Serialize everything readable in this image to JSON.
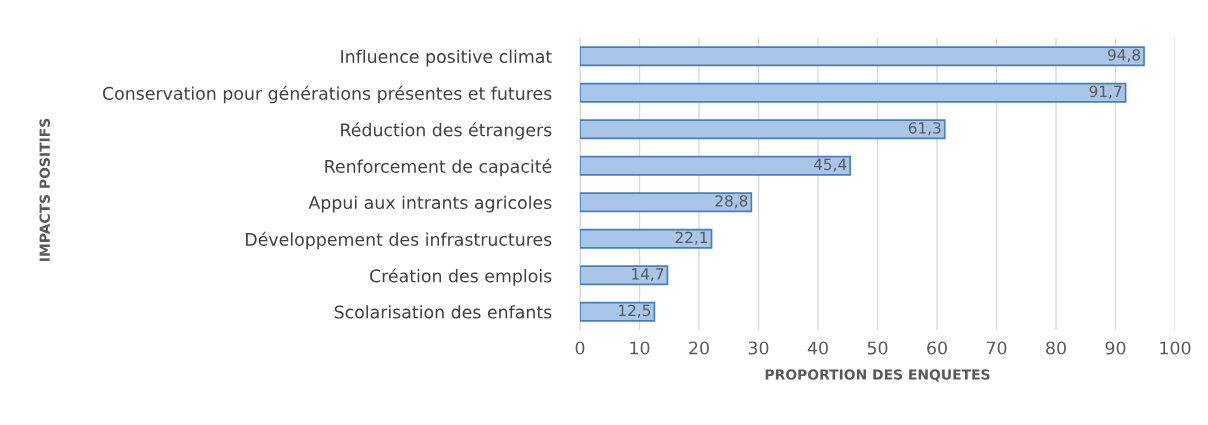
{
  "chart_data": {
    "type": "bar",
    "orientation": "horizontal",
    "xlabel": "PROPORTION DES ENQUETES",
    "ylabel": "IMPACTS POSITIFS",
    "categories": [
      "Influence positive climat",
      "Conservation pour générations présentes et futures",
      "Réduction des étrangers",
      "Renforcement de capacité",
      "Appui aux intrants agricoles",
      "Développement des infrastructures",
      "Création des emplois",
      "Scolarisation des enfants"
    ],
    "series": [
      {
        "color": "#a9c6e8",
        "values": [
          94.8,
          91.7,
          61.3,
          45.4,
          28.8,
          22.1,
          14.7,
          12.5
        ],
        "value_labels": [
          "94,8",
          "91,7",
          "61,3",
          "45,4",
          "28,8",
          "22,1",
          "14,7",
          "12,5"
        ]
      }
    ],
    "xlim": [
      0,
      100
    ],
    "xticks": [
      0,
      10,
      20,
      30,
      40,
      50,
      60,
      70,
      80,
      90,
      100
    ],
    "grid": "x",
    "legend": false
  }
}
